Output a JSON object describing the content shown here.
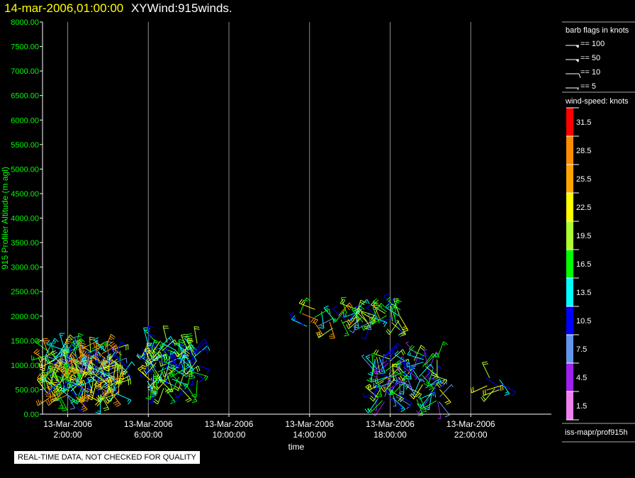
{
  "header": {
    "timestamp": "14-mar-2006,01:00:00",
    "title": "XYWind:915winds."
  },
  "colors": {
    "axis_text": "#00ff00",
    "gridline": "#8c8c8c",
    "axis_line": "#ffffff",
    "title_timestamp": "#ffff00"
  },
  "chart_data": {
    "type": "scatter",
    "subtype": "wind-barbs",
    "ylabel": "915 Profiler Altitude (m agl)",
    "xlabel": "time",
    "ylim": [
      0,
      8000
    ],
    "y_ticks": [
      "0.00",
      "500.00",
      "1000.00",
      "1500.00",
      "2000.00",
      "2500.00",
      "3000.00",
      "3500.00",
      "4000.00",
      "4500.00",
      "5000.00",
      "5500.00",
      "6000.00",
      "6500.00",
      "7000.00",
      "7500.00",
      "8000.00"
    ],
    "x_range_hours": [
      0.75,
      26.0
    ],
    "x_ticks": [
      {
        "hour": 2,
        "date": "13-Mar-2006",
        "time": "2:00:00"
      },
      {
        "hour": 6,
        "date": "13-Mar-2006",
        "time": "6:00:00"
      },
      {
        "hour": 10,
        "date": "13-Mar-2006",
        "time": "10:00:00"
      },
      {
        "hour": 14,
        "date": "13-Mar-2006",
        "time": "14:00:00"
      },
      {
        "hour": 18,
        "date": "13-Mar-2006",
        "time": "18:00:00"
      },
      {
        "hour": 22,
        "date": "13-Mar-2006",
        "time": "22:00:00"
      }
    ],
    "vertical_gridlines": true,
    "clusters": [
      {
        "t0": 0.9,
        "t1": 4.7,
        "h0": 350,
        "h1": 1350,
        "speed_range": [
          7,
          30
        ],
        "count": 230
      },
      {
        "t0": 5.9,
        "t1": 8.5,
        "h0": 500,
        "h1": 1500,
        "speed_range": [
          9,
          22
        ],
        "count": 120
      },
      {
        "t0": 13.5,
        "t1": 16.3,
        "h0": 1750,
        "h1": 2150,
        "speed_range": [
          8,
          30
        ],
        "count": 22
      },
      {
        "t0": 16.2,
        "t1": 18.6,
        "h0": 1850,
        "h1": 2150,
        "speed_range": [
          8,
          25
        ],
        "count": 38
      },
      {
        "t0": 17.1,
        "t1": 20.5,
        "h0": 250,
        "h1": 1200,
        "speed_range": [
          3,
          22
        ],
        "count": 110
      },
      {
        "t0": 22.7,
        "t1": 23.7,
        "h0": 450,
        "h1": 750,
        "speed_range": [
          8,
          23
        ],
        "count": 8
      }
    ],
    "legend": {
      "barb_title": "barb flags in knots",
      "barbs": [
        {
          "label": "== 100",
          "value": 100
        },
        {
          "label": "== 50",
          "value": 50
        },
        {
          "label": "== 10",
          "value": 10
        },
        {
          "label": "== 5",
          "value": 5
        }
      ],
      "speed_title": "wind-speed: knots",
      "color_scale": [
        {
          "label": "31.5",
          "color": "#ff0000",
          "min": 30
        },
        {
          "label": "28.5",
          "color": "#ff8c00",
          "min": 27
        },
        {
          "label": "25.5",
          "color": "#ffa500",
          "min": 24
        },
        {
          "label": "22.5",
          "color": "#ffff00",
          "min": 21
        },
        {
          "label": "19.5",
          "color": "#adff2f",
          "min": 18
        },
        {
          "label": "16.5",
          "color": "#00ff00",
          "min": 15
        },
        {
          "label": "13.5",
          "color": "#00ffff",
          "min": 12
        },
        {
          "label": "10.5",
          "color": "#0000ff",
          "min": 9
        },
        {
          "label": "7.5",
          "color": "#6495ed",
          "min": 6
        },
        {
          "label": "4.5",
          "color": "#a020f0",
          "min": 3
        },
        {
          "label": "1.5",
          "color": "#ee82ee",
          "min": 0
        }
      ],
      "footer": "iss-mapr/prof915h"
    }
  },
  "notice": "REAL-TIME DATA, NOT CHECKED FOR QUALITY"
}
